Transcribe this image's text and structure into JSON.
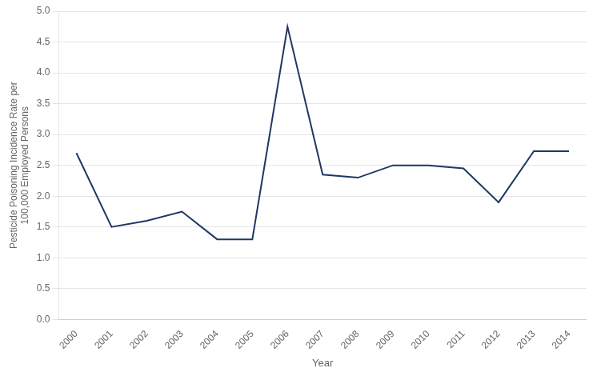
{
  "chart_data": {
    "type": "line",
    "x": [
      2000,
      2001,
      2002,
      2003,
      2004,
      2005,
      2006,
      2007,
      2008,
      2009,
      2010,
      2011,
      2012,
      2013,
      2014
    ],
    "values": [
      2.7,
      1.5,
      1.6,
      1.75,
      1.3,
      1.3,
      4.75,
      2.35,
      2.3,
      2.5,
      2.5,
      2.45,
      1.9,
      2.73,
      2.73
    ],
    "color": "#1F3864",
    "xlabel": "Year",
    "ylabel": "Pesticide Poisoning Incidence Rate per\n100,000 Employed Persons",
    "xlim": [
      1999.5,
      2014.5
    ],
    "xticks": [
      2000,
      2001,
      2002,
      2003,
      2004,
      2005,
      2006,
      2007,
      2008,
      2009,
      2010,
      2011,
      2012,
      2013,
      2014
    ],
    "ylim": [
      0.0,
      5.0
    ],
    "yticks": [
      {
        "value": 0.0,
        "label": "0.0"
      },
      0.5,
      {
        "value": 1.0,
        "label": "1.0"
      },
      1.5,
      {
        "value": 2.0,
        "label": "2.0"
      },
      2.5,
      {
        "value": 3.0,
        "label": "3.0"
      },
      3.5,
      {
        "value": 4.0,
        "label": "4.0"
      },
      4.5,
      {
        "value": 5.0,
        "label": "5.0"
      }
    ],
    "grid": "y"
  }
}
